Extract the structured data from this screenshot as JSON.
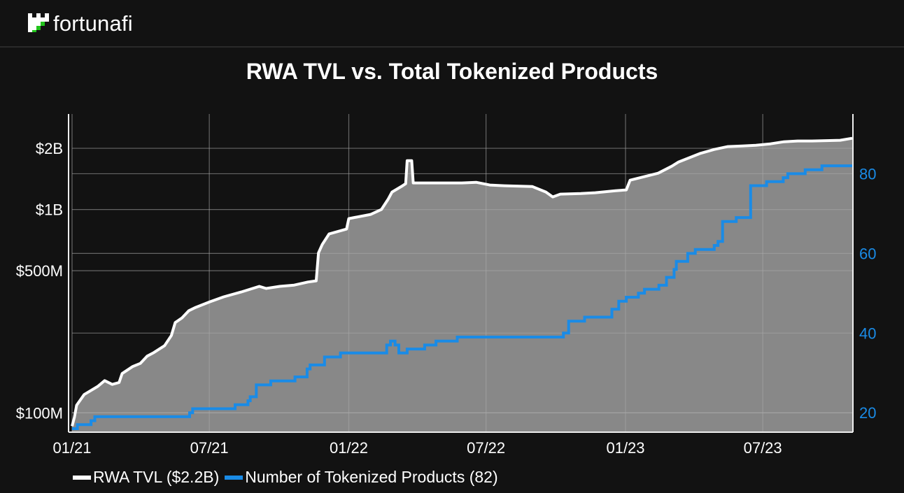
{
  "brand": {
    "name": "fortunafi",
    "accent": "#22c41c"
  },
  "title": "RWA TVL vs. Total Tokenized Products",
  "chart_data": {
    "type": "line",
    "title": "RWA TVL vs. Total Tokenized Products",
    "xlabel": "",
    "x_ticks": [
      "01/21",
      "07/21",
      "01/22",
      "07/22",
      "01/23",
      "07/23"
    ],
    "x_tick_dates": [
      "2021-01-01",
      "2021-07-01",
      "2022-01-01",
      "2022-07-01",
      "2023-01-01",
      "2023-07-01"
    ],
    "xlim": [
      "2021-01-01",
      "2023-10-27"
    ],
    "y_left": {
      "scale": "log",
      "unit": "USD millions",
      "ylim": [
        81,
        2950
      ],
      "ticks": [
        100,
        500,
        1000,
        2000
      ],
      "tick_labels": [
        "$100M",
        "$500M",
        "$1B",
        "$2B"
      ]
    },
    "y_right": {
      "scale": "linear",
      "ylim": [
        15.3,
        95
      ],
      "ticks": [
        20,
        40,
        60,
        80
      ],
      "tick_labels": [
        "20",
        "40",
        "60",
        "80"
      ],
      "grid": true
    },
    "grid": true,
    "legend_placement": "bottom-left",
    "background": "#121212",
    "area_fill": "#888888",
    "series": [
      {
        "name": "RWA TVL ($2.2B)",
        "axis": "left",
        "color": "#ffffff",
        "style": "area-line",
        "points": [
          [
            "2021-01-01",
            86
          ],
          [
            "2021-01-04",
            95
          ],
          [
            "2021-01-07",
            109
          ],
          [
            "2021-01-17",
            123
          ],
          [
            "2021-02-04",
            135
          ],
          [
            "2021-02-13",
            144
          ],
          [
            "2021-02-23",
            138
          ],
          [
            "2021-03-04",
            141
          ],
          [
            "2021-03-08",
            156
          ],
          [
            "2021-03-22",
            169
          ],
          [
            "2021-04-01",
            175
          ],
          [
            "2021-04-10",
            190
          ],
          [
            "2021-04-19",
            198
          ],
          [
            "2021-05-03",
            214
          ],
          [
            "2021-05-12",
            240
          ],
          [
            "2021-05-17",
            278
          ],
          [
            "2021-05-26",
            293
          ],
          [
            "2021-06-04",
            318
          ],
          [
            "2021-06-13",
            330
          ],
          [
            "2021-07-02",
            352
          ],
          [
            "2021-07-20",
            372
          ],
          [
            "2021-08-12",
            393
          ],
          [
            "2021-09-05",
            419
          ],
          [
            "2021-09-14",
            409
          ],
          [
            "2021-10-02",
            419
          ],
          [
            "2021-10-21",
            425
          ],
          [
            "2021-11-08",
            440
          ],
          [
            "2021-11-19",
            446
          ],
          [
            "2021-11-22",
            612
          ],
          [
            "2021-11-27",
            673
          ],
          [
            "2021-12-06",
            758
          ],
          [
            "2021-12-29",
            801
          ],
          [
            "2022-01-01",
            902
          ],
          [
            "2022-01-30",
            946
          ],
          [
            "2022-02-13",
            1000
          ],
          [
            "2022-02-22",
            1126
          ],
          [
            "2022-02-27",
            1219
          ],
          [
            "2022-03-13",
            1309
          ],
          [
            "2022-03-17",
            1340
          ],
          [
            "2022-03-19",
            1740
          ],
          [
            "2022-03-25",
            1740
          ],
          [
            "2022-03-27",
            1351
          ],
          [
            "2022-04-23",
            1351
          ],
          [
            "2022-05-30",
            1351
          ],
          [
            "2022-06-18",
            1361
          ],
          [
            "2022-07-06",
            1319
          ],
          [
            "2022-07-25",
            1309
          ],
          [
            "2022-08-31",
            1298
          ],
          [
            "2022-09-18",
            1219
          ],
          [
            "2022-09-27",
            1153
          ],
          [
            "2022-10-07",
            1190
          ],
          [
            "2022-11-03",
            1199
          ],
          [
            "2022-11-22",
            1209
          ],
          [
            "2022-12-19",
            1238
          ],
          [
            "2023-01-02",
            1248
          ],
          [
            "2023-01-07",
            1394
          ],
          [
            "2023-02-13",
            1509
          ],
          [
            "2023-03-03",
            1633
          ],
          [
            "2023-03-12",
            1713
          ],
          [
            "2023-04-09",
            1884
          ],
          [
            "2023-04-28",
            1975
          ],
          [
            "2023-05-16",
            2040
          ],
          [
            "2023-06-04",
            2055
          ],
          [
            "2023-06-22",
            2070
          ],
          [
            "2023-07-11",
            2104
          ],
          [
            "2023-07-29",
            2154
          ],
          [
            "2023-08-16",
            2173
          ],
          [
            "2023-09-04",
            2173
          ],
          [
            "2023-10-11",
            2190
          ],
          [
            "2023-10-27",
            2242
          ]
        ]
      },
      {
        "name": "Number of Tokenized Products (82)",
        "axis": "right",
        "color": "#1a8be6",
        "style": "step",
        "points": [
          [
            "2021-01-01",
            16
          ],
          [
            "2021-01-08",
            17
          ],
          [
            "2021-01-26",
            18
          ],
          [
            "2021-01-31",
            19
          ],
          [
            "2021-06-05",
            20
          ],
          [
            "2021-06-09",
            21
          ],
          [
            "2021-08-04",
            22
          ],
          [
            "2021-08-21",
            23
          ],
          [
            "2021-08-24",
            24
          ],
          [
            "2021-09-01",
            27
          ],
          [
            "2021-09-20",
            28
          ],
          [
            "2021-10-22",
            29
          ],
          [
            "2021-11-07",
            31
          ],
          [
            "2021-11-11",
            32
          ],
          [
            "2021-11-30",
            34
          ],
          [
            "2021-12-21",
            35
          ],
          [
            "2022-02-20",
            37
          ],
          [
            "2022-02-25",
            38
          ],
          [
            "2022-03-03",
            37
          ],
          [
            "2022-03-08",
            35
          ],
          [
            "2022-03-19",
            36
          ],
          [
            "2022-04-11",
            37
          ],
          [
            "2022-04-26",
            38
          ],
          [
            "2022-05-24",
            39
          ],
          [
            "2022-10-11",
            40
          ],
          [
            "2022-10-18",
            43
          ],
          [
            "2022-11-08",
            44
          ],
          [
            "2022-12-14",
            46
          ],
          [
            "2022-12-23",
            48
          ],
          [
            "2023-01-02",
            49
          ],
          [
            "2023-01-18",
            50
          ],
          [
            "2023-01-26",
            51
          ],
          [
            "2023-02-14",
            52
          ],
          [
            "2023-02-24",
            54
          ],
          [
            "2023-03-06",
            56
          ],
          [
            "2023-03-09",
            58
          ],
          [
            "2023-03-24",
            60
          ],
          [
            "2023-04-03",
            61
          ],
          [
            "2023-04-28",
            62
          ],
          [
            "2023-05-03",
            63
          ],
          [
            "2023-05-09",
            68
          ],
          [
            "2023-05-27",
            69
          ],
          [
            "2023-06-15",
            77
          ],
          [
            "2023-07-06",
            78
          ],
          [
            "2023-07-28",
            79
          ],
          [
            "2023-08-03",
            80
          ],
          [
            "2023-08-26",
            81
          ],
          [
            "2023-09-17",
            82
          ],
          [
            "2023-10-27",
            82
          ]
        ]
      }
    ]
  },
  "legend": {
    "tvl": "RWA TVL ($2.2B)",
    "products": "Number of Tokenized Products (82)"
  }
}
